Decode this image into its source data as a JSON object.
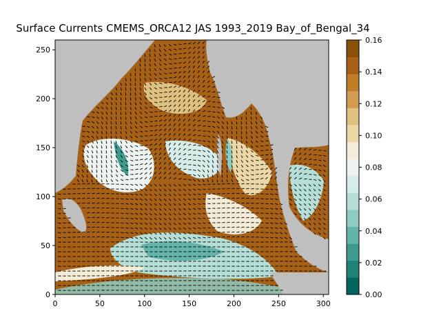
{
  "chart_data": {
    "type": "heatmap",
    "title": "Surface Currents CMEMS_ORCA12 JAS 1993_2019 Bay_of_Bengal_34",
    "xlabel": "",
    "ylabel": "",
    "xlim": [
      0,
      306
    ],
    "ylim": [
      0,
      260
    ],
    "x_ticks": [
      0,
      50,
      100,
      150,
      200,
      250,
      300
    ],
    "y_ticks": [
      0,
      50,
      100,
      150,
      200,
      250
    ],
    "colorbar": {
      "min": 0.0,
      "max": 0.16,
      "ticks": [
        "0.00",
        "0.02",
        "0.04",
        "0.06",
        "0.08",
        "0.10",
        "0.12",
        "0.14",
        "0.16"
      ],
      "levels": [
        "#01665e",
        "#1f8177",
        "#3e9a8f",
        "#64b4a9",
        "#8ecbc1",
        "#b5ded6",
        "#d5ece8",
        "#eef4f0",
        "#f4ecd6",
        "#ecd8a6",
        "#dfc17f",
        "#cf9c52",
        "#be7f2b",
        "#a66117",
        "#8c510a"
      ]
    },
    "land_color": "#bfbfbf",
    "arrows": "quiver of surface current vectors (black)"
  }
}
